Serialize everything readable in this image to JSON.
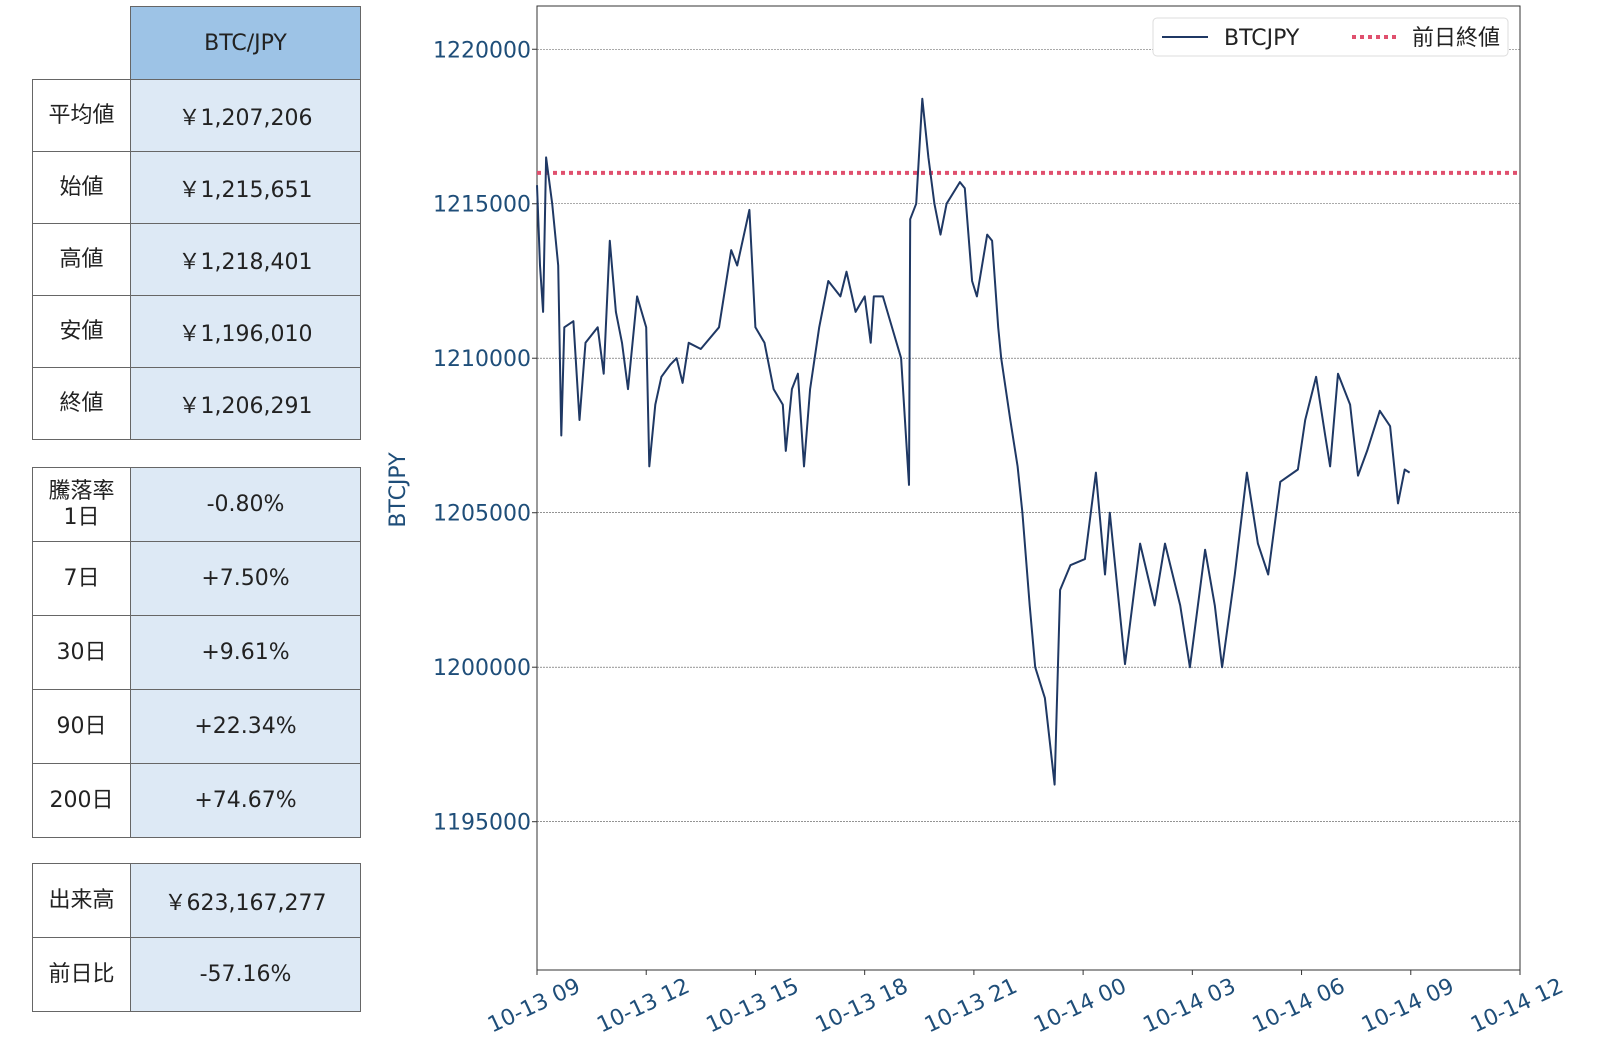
{
  "summary_table": {
    "header": "BTC/JPY",
    "rows": [
      [
        "平均値",
        "￥1,207,206"
      ],
      [
        "始値",
        "￥1,215,651"
      ],
      [
        "高値",
        "￥1,218,401"
      ],
      [
        "安値",
        "￥1,196,010"
      ],
      [
        "終値",
        "￥1,206,291"
      ]
    ]
  },
  "change_table": {
    "rows": [
      [
        "騰落率\n1日",
        "-0.80%"
      ],
      [
        "7日",
        "+7.50%"
      ],
      [
        "30日",
        "+9.61%"
      ],
      [
        "90日",
        "+22.34%"
      ],
      [
        "200日",
        "+74.67%"
      ]
    ]
  },
  "volume_table": {
    "rows": [
      [
        "出来高",
        "￥623,167,277"
      ],
      [
        "前日比",
        "-57.16%"
      ]
    ]
  },
  "chart_data": {
    "type": "line",
    "y_label": "BTCJPY",
    "x": [
      "10-13 09:00",
      "10-13 09:05",
      "10-13 09:10",
      "10-13 09:15",
      "10-13 09:25",
      "10-13 09:35",
      "10-13 09:40",
      "10-13 09:45",
      "10-13 10:00",
      "10-13 10:10",
      "10-13 10:20",
      "10-13 10:40",
      "10-13 10:50",
      "10-13 11:00",
      "10-13 11:10",
      "10-13 11:20",
      "10-13 11:30",
      "10-13 11:45",
      "10-13 12:00",
      "10-13 12:05",
      "10-13 12:15",
      "10-13 12:25",
      "10-13 12:40",
      "10-13 12:50",
      "10-13 13:00",
      "10-13 13:10",
      "10-13 13:30",
      "10-13 14:00",
      "10-13 14:20",
      "10-13 14:30",
      "10-13 14:50",
      "10-13 15:00",
      "10-13 15:15",
      "10-13 15:30",
      "10-13 15:45",
      "10-13 15:50",
      "10-13 16:00",
      "10-13 16:10",
      "10-13 16:20",
      "10-13 16:30",
      "10-13 16:45",
      "10-13 17:00",
      "10-13 17:20",
      "10-13 17:30",
      "10-13 17:45",
      "10-13 18:00",
      "10-13 18:10",
      "10-13 18:15",
      "10-13 18:30",
      "10-13 19:00",
      "10-13 19:13",
      "10-13 19:15",
      "10-13 19:25",
      "10-13 19:35",
      "10-13 19:45",
      "10-13 19:55",
      "10-13 20:05",
      "10-13 20:15",
      "10-13 20:37",
      "10-13 20:45",
      "10-13 20:57",
      "10-13 21:05",
      "10-13 21:22",
      "10-13 21:30",
      "10-13 21:40",
      "10-13 21:45",
      "10-13 22:00",
      "10-13 22:12",
      "10-13 22:20",
      "10-13 22:32",
      "10-13 22:41",
      "10-13 22:57",
      "10-13 23:13",
      "10-13 23:22",
      "10-13 23:39",
      "10-14 00:03",
      "10-14 00:21",
      "10-14 00:36",
      "10-14 00:44",
      "10-14 01:09",
      "10-14 01:34",
      "10-14 01:58",
      "10-14 02:15",
      "10-14 02:40",
      "10-14 02:56",
      "10-14 03:21",
      "10-14 03:37",
      "10-14 03:49",
      "10-14 04:10",
      "10-14 04:30",
      "10-14 04:48",
      "10-14 05:05",
      "10-14 05:25",
      "10-14 05:54",
      "10-14 06:06",
      "10-14 06:24",
      "10-14 06:39",
      "10-14 06:47",
      "10-14 07:00",
      "10-14 07:20",
      "10-14 07:33",
      "10-14 07:48",
      "10-14 08:09",
      "10-14 08:26",
      "10-14 08:39",
      "10-14 08:50",
      "10-14 08:58"
    ],
    "series": [
      {
        "name": "BTCJPY",
        "color": "#1f3864",
        "values": [
          1215600,
          1213000,
          1211500,
          1216500,
          1215000,
          1213000,
          1207500,
          1211000,
          1211200,
          1208000,
          1210500,
          1211000,
          1209500,
          1213800,
          1211500,
          1210500,
          1209000,
          1212000,
          1211000,
          1206500,
          1208500,
          1209400,
          1209800,
          1210000,
          1209200,
          1210500,
          1210300,
          1211000,
          1213500,
          1213000,
          1214800,
          1211000,
          1210500,
          1209000,
          1208500,
          1207000,
          1209000,
          1209500,
          1206500,
          1209000,
          1211000,
          1212500,
          1212000,
          1212800,
          1211500,
          1212000,
          1210500,
          1212000,
          1212000,
          1210000,
          1205900,
          1214500,
          1215000,
          1218400,
          1216500,
          1215000,
          1214000,
          1215000,
          1215700,
          1215500,
          1212500,
          1212000,
          1214000,
          1213800,
          1211000,
          1210000,
          1208000,
          1206500,
          1205000,
          1202000,
          1200000,
          1199000,
          1196200,
          1202500,
          1203300,
          1203500,
          1206300,
          1203000,
          1205000,
          1200100,
          1204000,
          1202000,
          1204000,
          1202000,
          1200000,
          1203800,
          1202000,
          1200000,
          1203000,
          1206300,
          1204000,
          1203000,
          1206000,
          1206400,
          1208000,
          1209400,
          1207500,
          1206500,
          1209500,
          1208500,
          1206200,
          1207000,
          1208300,
          1207800,
          1205300,
          1206400,
          1206300
        ]
      }
    ],
    "reference_line": {
      "name": "前日終値",
      "value": 1216000,
      "color": "#e0506e"
    },
    "xlim": [
      "10-13 09",
      "10-14 12"
    ],
    "xticks": [
      "10-13 09",
      "10-13 12",
      "10-13 15",
      "10-13 18",
      "10-13 21",
      "10-14 00",
      "10-14 03",
      "10-14 06",
      "10-14 09",
      "10-14 12"
    ],
    "ylim": [
      1190200,
      1221400
    ],
    "yticks": [
      1195000,
      1200000,
      1205000,
      1210000,
      1215000,
      1220000
    ],
    "grid": true,
    "legend": "upper right"
  }
}
